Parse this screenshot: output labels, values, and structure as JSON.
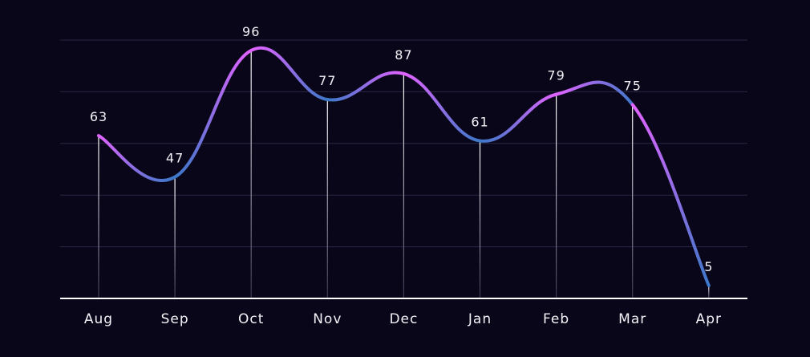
{
  "chart_data": {
    "type": "line",
    "categories": [
      "Aug",
      "Sep",
      "Oct",
      "Nov",
      "Dec",
      "Jan",
      "Feb",
      "Mar",
      "Apr"
    ],
    "values": [
      63,
      47,
      96,
      77,
      87,
      61,
      79,
      75,
      5
    ],
    "ylim": [
      0,
      100
    ],
    "grid": true,
    "legend": "none",
    "smooth": true,
    "colors": {
      "background": "#09061a",
      "grid": "#2b2745",
      "axis": "#ffffff",
      "drop_line_top": "#ffffff",
      "drop_line_bottom": "#3a3650",
      "line_high": "#e163ff",
      "line_low": "#3d78c9",
      "text": "#f2f2f6"
    }
  }
}
